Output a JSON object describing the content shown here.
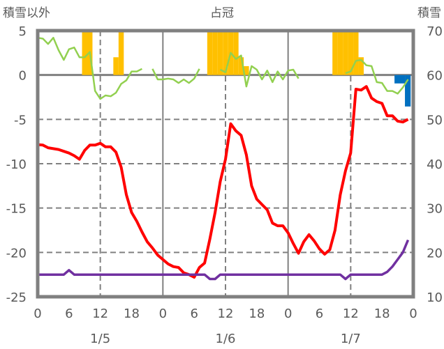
{
  "chart_data": {
    "type": "line",
    "title": "占冠",
    "ylabel_left": "積雪以外",
    "ylabel_right": "積雪",
    "ylim_left": [
      -25,
      5
    ],
    "ylim_right": [
      10,
      70
    ],
    "yticks_left": [
      "5",
      "0",
      "-5",
      "-10",
      "-15",
      "-20",
      "-25"
    ],
    "yticks_right": [
      "70",
      "60",
      "50",
      "40",
      "30",
      "20",
      "10"
    ],
    "xlim_hours": [
      0,
      72
    ],
    "xtick_labels": [
      "0",
      "6",
      "12",
      "18",
      "0",
      "6",
      "12",
      "18",
      "0",
      "6",
      "12",
      "18",
      "0"
    ],
    "day_labels": [
      {
        "label": "1/5",
        "hour": 12
      },
      {
        "label": "1/6",
        "hour": 36
      },
      {
        "label": "1/7",
        "hour": 60
      }
    ],
    "grid": true,
    "series": [
      {
        "name": "temperature",
        "color": "#ff0000",
        "axis": "left",
        "values": [
          -7.85,
          -7.9,
          -8.2,
          -8.3,
          -8.4,
          -8.6,
          -8.8,
          -9.1,
          -9.5,
          -8.5,
          -7.9,
          -7.9,
          -7.7,
          -8.1,
          -8.1,
          -8.7,
          -10.4,
          -13.5,
          -15.5,
          -16.5,
          -17.7,
          -18.8,
          -19.5,
          -20.3,
          -20.8,
          -21.3,
          -21.6,
          -21.7,
          -22.3,
          -22.5,
          -22.8,
          -21.7,
          -21.2,
          -18.5,
          -15.5,
          -12,
          -9.5,
          -5.5,
          -6.3,
          -6.8,
          -9,
          -12.5,
          -14,
          -14.6,
          -15.2,
          -16.7,
          -17,
          -17,
          -17.8,
          -19,
          -20.1,
          -18.8,
          -18,
          -18.7,
          -19.6,
          -20.2,
          -19.7,
          -17.5,
          -13.5,
          -10.8,
          -8.8,
          -1.6,
          -1.7,
          -1.3,
          -2.6,
          -3.0,
          -3.2,
          -4.6,
          -4.6,
          -5.2,
          -5.3,
          -5.0
        ]
      },
      {
        "name": "green-series",
        "color": "#92d050",
        "axis": "left",
        "values": [
          4.2,
          4.1,
          3.5,
          4.2,
          2.8,
          1.7,
          2.9,
          3.1,
          2.0,
          2.0,
          2.6,
          -1.8,
          -2.7,
          -2.3,
          -2.4,
          -2.0,
          -1.0,
          -0.6,
          0.4,
          0.4,
          0.7,
          null,
          0.7,
          -0.5,
          -0.5,
          -0.4,
          -0.5,
          -0.9,
          -0.5,
          -0.9,
          -0.4,
          0.7,
          null,
          null,
          null,
          0.6,
          0.3,
          2.5,
          1.8,
          2.2,
          -1.3,
          1.0,
          0.6,
          -0.5,
          0.5,
          -0.8,
          0.4,
          -0.5,
          0.5,
          0.6,
          -0.4,
          null,
          null,
          null,
          null,
          null,
          null,
          null,
          null,
          0.2,
          0.4,
          1.6,
          1.7,
          1.1,
          1.0,
          -0.8,
          -0.9,
          -1.8,
          -1.8,
          -2.1,
          -1.4,
          -0.5
        ]
      },
      {
        "name": "purple-series",
        "color": "#7030a0",
        "axis": "left",
        "values": [
          -22.5,
          -22.5,
          -22.5,
          -22.5,
          -22.5,
          -22.5,
          -22.0,
          -22.5,
          -22.5,
          -22.5,
          -22.5,
          -22.5,
          -22.5,
          -22.5,
          -22.5,
          -22.5,
          -22.5,
          -22.5,
          -22.5,
          -22.5,
          -22.5,
          -22.5,
          -22.5,
          -22.5,
          -22.5,
          -22.5,
          -22.5,
          -22.5,
          -22.5,
          -22.5,
          -22.5,
          -22.5,
          -22.5,
          -23.0,
          -23.0,
          -22.5,
          -22.5,
          -22.5,
          -22.5,
          -22.5,
          -22.5,
          -22.5,
          -22.5,
          -22.5,
          -22.5,
          -22.5,
          -22.5,
          -22.5,
          -22.5,
          -22.5,
          -22.5,
          -22.5,
          -22.5,
          -22.5,
          -22.5,
          -22.5,
          -22.5,
          -22.5,
          -22.5,
          -23.0,
          -22.5,
          -22.5,
          -22.5,
          -22.5,
          -22.5,
          -22.5,
          -22.5,
          -22.2,
          -21.6,
          -20.8,
          -20.0,
          -18.6
        ]
      }
    ],
    "bars": [
      {
        "name": "sunshine",
        "color": "#ffc000",
        "axis": "left",
        "base": 0,
        "items": [
          {
            "start": 8.5,
            "value": 5
          },
          {
            "start": 9.5,
            "value": 5
          },
          {
            "start": 14.5,
            "value": 2
          },
          {
            "start": 15.5,
            "value": 5
          },
          {
            "start": 32.5,
            "value": 5
          },
          {
            "start": 33.5,
            "value": 5
          },
          {
            "start": 34.5,
            "value": 5
          },
          {
            "start": 35.5,
            "value": 5
          },
          {
            "start": 36.5,
            "value": 5
          },
          {
            "start": 37.5,
            "value": 5
          },
          {
            "start": 38.5,
            "value": 2
          },
          {
            "start": 39.5,
            "value": 1
          },
          {
            "start": 56.5,
            "value": 5
          },
          {
            "start": 57.5,
            "value": 5
          },
          {
            "start": 58.5,
            "value": 5
          },
          {
            "start": 59.5,
            "value": 5
          },
          {
            "start": 60.5,
            "value": 5
          },
          {
            "start": 61.5,
            "value": 2
          }
        ]
      },
      {
        "name": "snow-depth",
        "color": "#0070c0",
        "axis": "right",
        "base": 60,
        "items": [
          {
            "start": 68.4,
            "value": 58.1,
            "width": 2
          },
          {
            "start": 70.4,
            "value": 52.9,
            "width": 1.1
          }
        ]
      }
    ]
  }
}
